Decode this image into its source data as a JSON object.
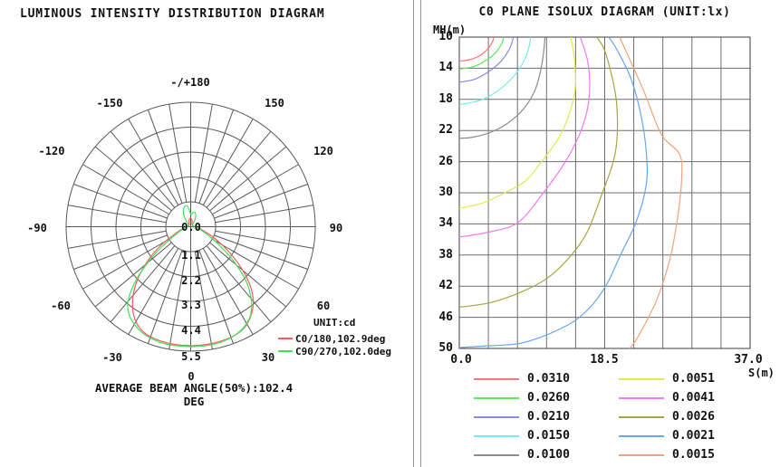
{
  "left_panel": {
    "title": "LUMINOUS INTENSITY DISTRIBUTION DIAGRAM",
    "footer": "AVERAGE BEAM ANGLE(50%):102.4 DEG",
    "legend_unit": "UNIT:cd",
    "angle_labels": [
      "-/+180",
      "-150",
      "150",
      "-120",
      "120",
      "-90",
      "90",
      "-60",
      "60",
      "-30",
      "30",
      "0"
    ]
  },
  "right_panel": {
    "title": "C0 PLANE ISOLUX DIAGRAM (UNIT:lx)",
    "y_axis_label": "MH(m)",
    "x_axis_label": "S(m)",
    "y_ticks": [
      "10",
      "14",
      "18",
      "22",
      "26",
      "30",
      "34",
      "38",
      "42",
      "46",
      "50"
    ],
    "x_ticks": [
      "0.0",
      "18.5",
      "37.0"
    ]
  },
  "chart_data": [
    {
      "type": "line",
      "subtype": "polar-intensity",
      "title": "LUMINOUS INTENSITY DISTRIBUTION DIAGRAM",
      "unit": "cd",
      "angle_zero": "bottom",
      "angle_step_deg": 10,
      "r_max": 5.5,
      "radial_ticks": [
        0.0,
        1.1,
        2.2,
        3.3,
        4.4,
        5.5
      ],
      "radial_tick_labels": [
        "0.0",
        "1.1",
        "2.2",
        "3.3",
        "4.4",
        "5.5"
      ],
      "annotation": "AVERAGE BEAM ANGLE(50%):102.4 DEG",
      "series": [
        {
          "name": "C0/180,102.9deg",
          "color": "#ff5a5a",
          "points": [
            [
              -180,
              0.38
            ],
            [
              -170,
              0.34
            ],
            [
              -160,
              0.22
            ],
            [
              -150,
              0.14
            ],
            [
              -135,
              0.1
            ],
            [
              -120,
              0.1
            ],
            [
              -105,
              0.12
            ],
            [
              -90,
              0.18
            ],
            [
              -80,
              0.3
            ],
            [
              -72,
              0.48
            ],
            [
              -65,
              0.78
            ],
            [
              -58,
              1.55
            ],
            [
              -52,
              2.35
            ],
            [
              -46,
              3.2
            ],
            [
              -40,
              3.95
            ],
            [
              -34,
              4.55
            ],
            [
              -28,
              4.95
            ],
            [
              -22,
              5.15
            ],
            [
              -15,
              5.22
            ],
            [
              -8,
              5.25
            ],
            [
              0,
              5.26
            ],
            [
              8,
              5.25
            ],
            [
              15,
              5.23
            ],
            [
              22,
              5.18
            ],
            [
              28,
              5.05
            ],
            [
              34,
              4.75
            ],
            [
              40,
              4.3
            ],
            [
              46,
              3.6
            ],
            [
              52,
              2.7
            ],
            [
              58,
              1.85
            ],
            [
              65,
              1.1
            ],
            [
              72,
              0.62
            ],
            [
              80,
              0.36
            ],
            [
              90,
              0.22
            ],
            [
              105,
              0.13
            ],
            [
              120,
              0.1
            ],
            [
              135,
              0.1
            ],
            [
              150,
              0.12
            ],
            [
              160,
              0.18
            ],
            [
              170,
              0.3
            ]
          ]
        },
        {
          "name": "C90/270,102.0deg",
          "color": "#3ce65a",
          "points": [
            [
              -180,
              0.55
            ],
            [
              -174,
              0.8
            ],
            [
              -168,
              0.95
            ],
            [
              -160,
              0.88
            ],
            [
              -152,
              0.68
            ],
            [
              -145,
              0.42
            ],
            [
              -135,
              0.18
            ],
            [
              -120,
              0.11
            ],
            [
              -105,
              0.12
            ],
            [
              -90,
              0.17
            ],
            [
              -80,
              0.26
            ],
            [
              -72,
              0.4
            ],
            [
              -65,
              0.62
            ],
            [
              -58,
              1.15
            ],
            [
              -52,
              2.1
            ],
            [
              -46,
              3.3
            ],
            [
              -40,
              4.3
            ],
            [
              -34,
              4.8
            ],
            [
              -28,
              5.05
            ],
            [
              -22,
              5.2
            ],
            [
              -15,
              5.28
            ],
            [
              -8,
              5.3
            ],
            [
              0,
              5.3
            ],
            [
              8,
              5.3
            ],
            [
              15,
              5.27
            ],
            [
              22,
              5.18
            ],
            [
              28,
              5.02
            ],
            [
              34,
              4.72
            ],
            [
              40,
              4.15
            ],
            [
              46,
              3.35
            ],
            [
              52,
              2.3
            ],
            [
              58,
              1.4
            ],
            [
              65,
              0.78
            ],
            [
              72,
              0.48
            ],
            [
              80,
              0.3
            ],
            [
              90,
              0.19
            ],
            [
              105,
              0.12
            ],
            [
              120,
              0.1
            ],
            [
              135,
              0.12
            ],
            [
              145,
              0.22
            ],
            [
              152,
              0.45
            ],
            [
              160,
              0.62
            ],
            [
              168,
              0.66
            ],
            [
              174,
              0.58
            ]
          ]
        }
      ]
    },
    {
      "type": "line",
      "subtype": "isolux-contours",
      "title": "C0 PLANE ISOLUX DIAGRAM (UNIT:lx)",
      "unit": "lx",
      "x": {
        "label": "S(m)",
        "min": 0,
        "max": 37,
        "ticks": [
          0.0,
          18.5,
          37.0
        ],
        "gridlines": 10
      },
      "y": {
        "label": "MH(m)",
        "min": 10,
        "max": 50,
        "ticks": [
          10,
          14,
          18,
          22,
          26,
          30,
          34,
          38,
          42,
          46,
          50
        ],
        "gridlines": 10,
        "inverted": true
      },
      "series": [
        {
          "label": "0.0310",
          "value": 0.031,
          "color": "#ff7878",
          "points": [
            [
              0,
              13.1
            ],
            [
              1.5,
              12.85
            ],
            [
              2.8,
              12.25
            ],
            [
              3.8,
              11.3
            ],
            [
              4.3,
              10.4
            ],
            [
              4.35,
              10
            ]
          ]
        },
        {
          "label": "0.0260",
          "value": 0.026,
          "color": "#5ce65c",
          "points": [
            [
              0,
              14.1
            ],
            [
              1.8,
              13.8
            ],
            [
              3.4,
              13.0
            ],
            [
              4.7,
              11.9
            ],
            [
              5.5,
              10.6
            ],
            [
              5.6,
              10
            ]
          ]
        },
        {
          "label": "0.0210",
          "value": 0.021,
          "color": "#8888f2",
          "points": [
            [
              0,
              15.8
            ],
            [
              2.0,
              15.4
            ],
            [
              3.8,
              14.4
            ],
            [
              5.3,
              13.1
            ],
            [
              6.4,
              11.5
            ],
            [
              6.9,
              10
            ]
          ]
        },
        {
          "label": "0.0150",
          "value": 0.015,
          "color": "#74eeee",
          "points": [
            [
              0,
              18.7
            ],
            [
              2.7,
              18.1
            ],
            [
              4.6,
              17.1
            ],
            [
              6.3,
              15.7
            ],
            [
              7.7,
              14.0
            ],
            [
              8.6,
              12.2
            ],
            [
              9.0,
              10.6
            ],
            [
              9.05,
              10
            ]
          ]
        },
        {
          "label": "0.0100",
          "value": 0.01,
          "color": "#8c8c8c",
          "points": [
            [
              0,
              23.0
            ],
            [
              1.5,
              22.9
            ],
            [
              3.8,
              22.3
            ],
            [
              6.1,
              21.1
            ],
            [
              8.2,
              19.2
            ],
            [
              9.6,
              16.9
            ],
            [
              10.3,
              14.5
            ],
            [
              10.7,
              12.2
            ],
            [
              10.9,
              10
            ]
          ]
        },
        {
          "label": "0.0051",
          "value": 0.0051,
          "color": "#e6e64e",
          "points": [
            [
              0,
              32.0
            ],
            [
              3.0,
              31.3
            ],
            [
              6.0,
              29.9
            ],
            [
              8.4,
              28.5
            ],
            [
              10.1,
              26.5
            ],
            [
              12.8,
              22.7
            ],
            [
              14.2,
              19.2
            ],
            [
              14.8,
              16.0
            ],
            [
              14.6,
              12.5
            ],
            [
              14.2,
              10
            ]
          ]
        },
        {
          "label": "0.0041",
          "value": 0.0041,
          "color": "#f07af0",
          "points": [
            [
              0,
              35.7
            ],
            [
              4.0,
              35.0
            ],
            [
              7.5,
              33.8
            ],
            [
              10.7,
              30.0
            ],
            [
              13.5,
              26.0
            ],
            [
              15.5,
              22.0
            ],
            [
              16.5,
              18.0
            ],
            [
              16.4,
              13.5
            ],
            [
              15.4,
              10
            ]
          ]
        },
        {
          "label": "0.0026",
          "value": 0.0026,
          "color": "#a6a63e",
          "points": [
            [
              0,
              44.7
            ],
            [
              4.0,
              44.1
            ],
            [
              8.0,
              42.7
            ],
            [
              11.3,
              40.9
            ],
            [
              14.0,
              38.3
            ],
            [
              16.3,
              35.0
            ],
            [
              18.2,
              30.0
            ],
            [
              19.6,
              26.0
            ],
            [
              20.1,
              22.5
            ],
            [
              19.9,
              17.5
            ],
            [
              18.6,
              12.0
            ],
            [
              17.5,
              10
            ]
          ]
        },
        {
          "label": "0.0021",
          "value": 0.0021,
          "color": "#66a6f2",
          "points": [
            [
              0,
              49.9
            ],
            [
              3.0,
              49.7
            ],
            [
              7.4,
              49.4
            ],
            [
              10.5,
              48.5
            ],
            [
              13.0,
              47.4
            ],
            [
              14.9,
              46.3
            ],
            [
              17.0,
              44.3
            ],
            [
              18.9,
              41.5
            ],
            [
              20.5,
              38.0
            ],
            [
              22.4,
              34.0
            ],
            [
              23.6,
              30.0
            ],
            [
              23.9,
              26.5
            ],
            [
              23.3,
              21.0
            ],
            [
              21.9,
              15.5
            ],
            [
              20.0,
              11.5
            ],
            [
              19.0,
              10
            ]
          ]
        },
        {
          "label": "0.0015",
          "value": 0.0015,
          "color": "#f2a478",
          "points": [
            [
              21.7,
              50
            ],
            [
              22.8,
              48.4
            ],
            [
              25.1,
              43.8
            ],
            [
              26.8,
              38.5
            ],
            [
              27.8,
              33.0
            ],
            [
              28.3,
              28.0
            ],
            [
              28.0,
              25.0
            ],
            [
              25.7,
              22.5
            ],
            [
              23.5,
              17.0
            ],
            [
              21.3,
              12.0
            ],
            [
              20.4,
              10
            ]
          ]
        }
      ]
    }
  ]
}
